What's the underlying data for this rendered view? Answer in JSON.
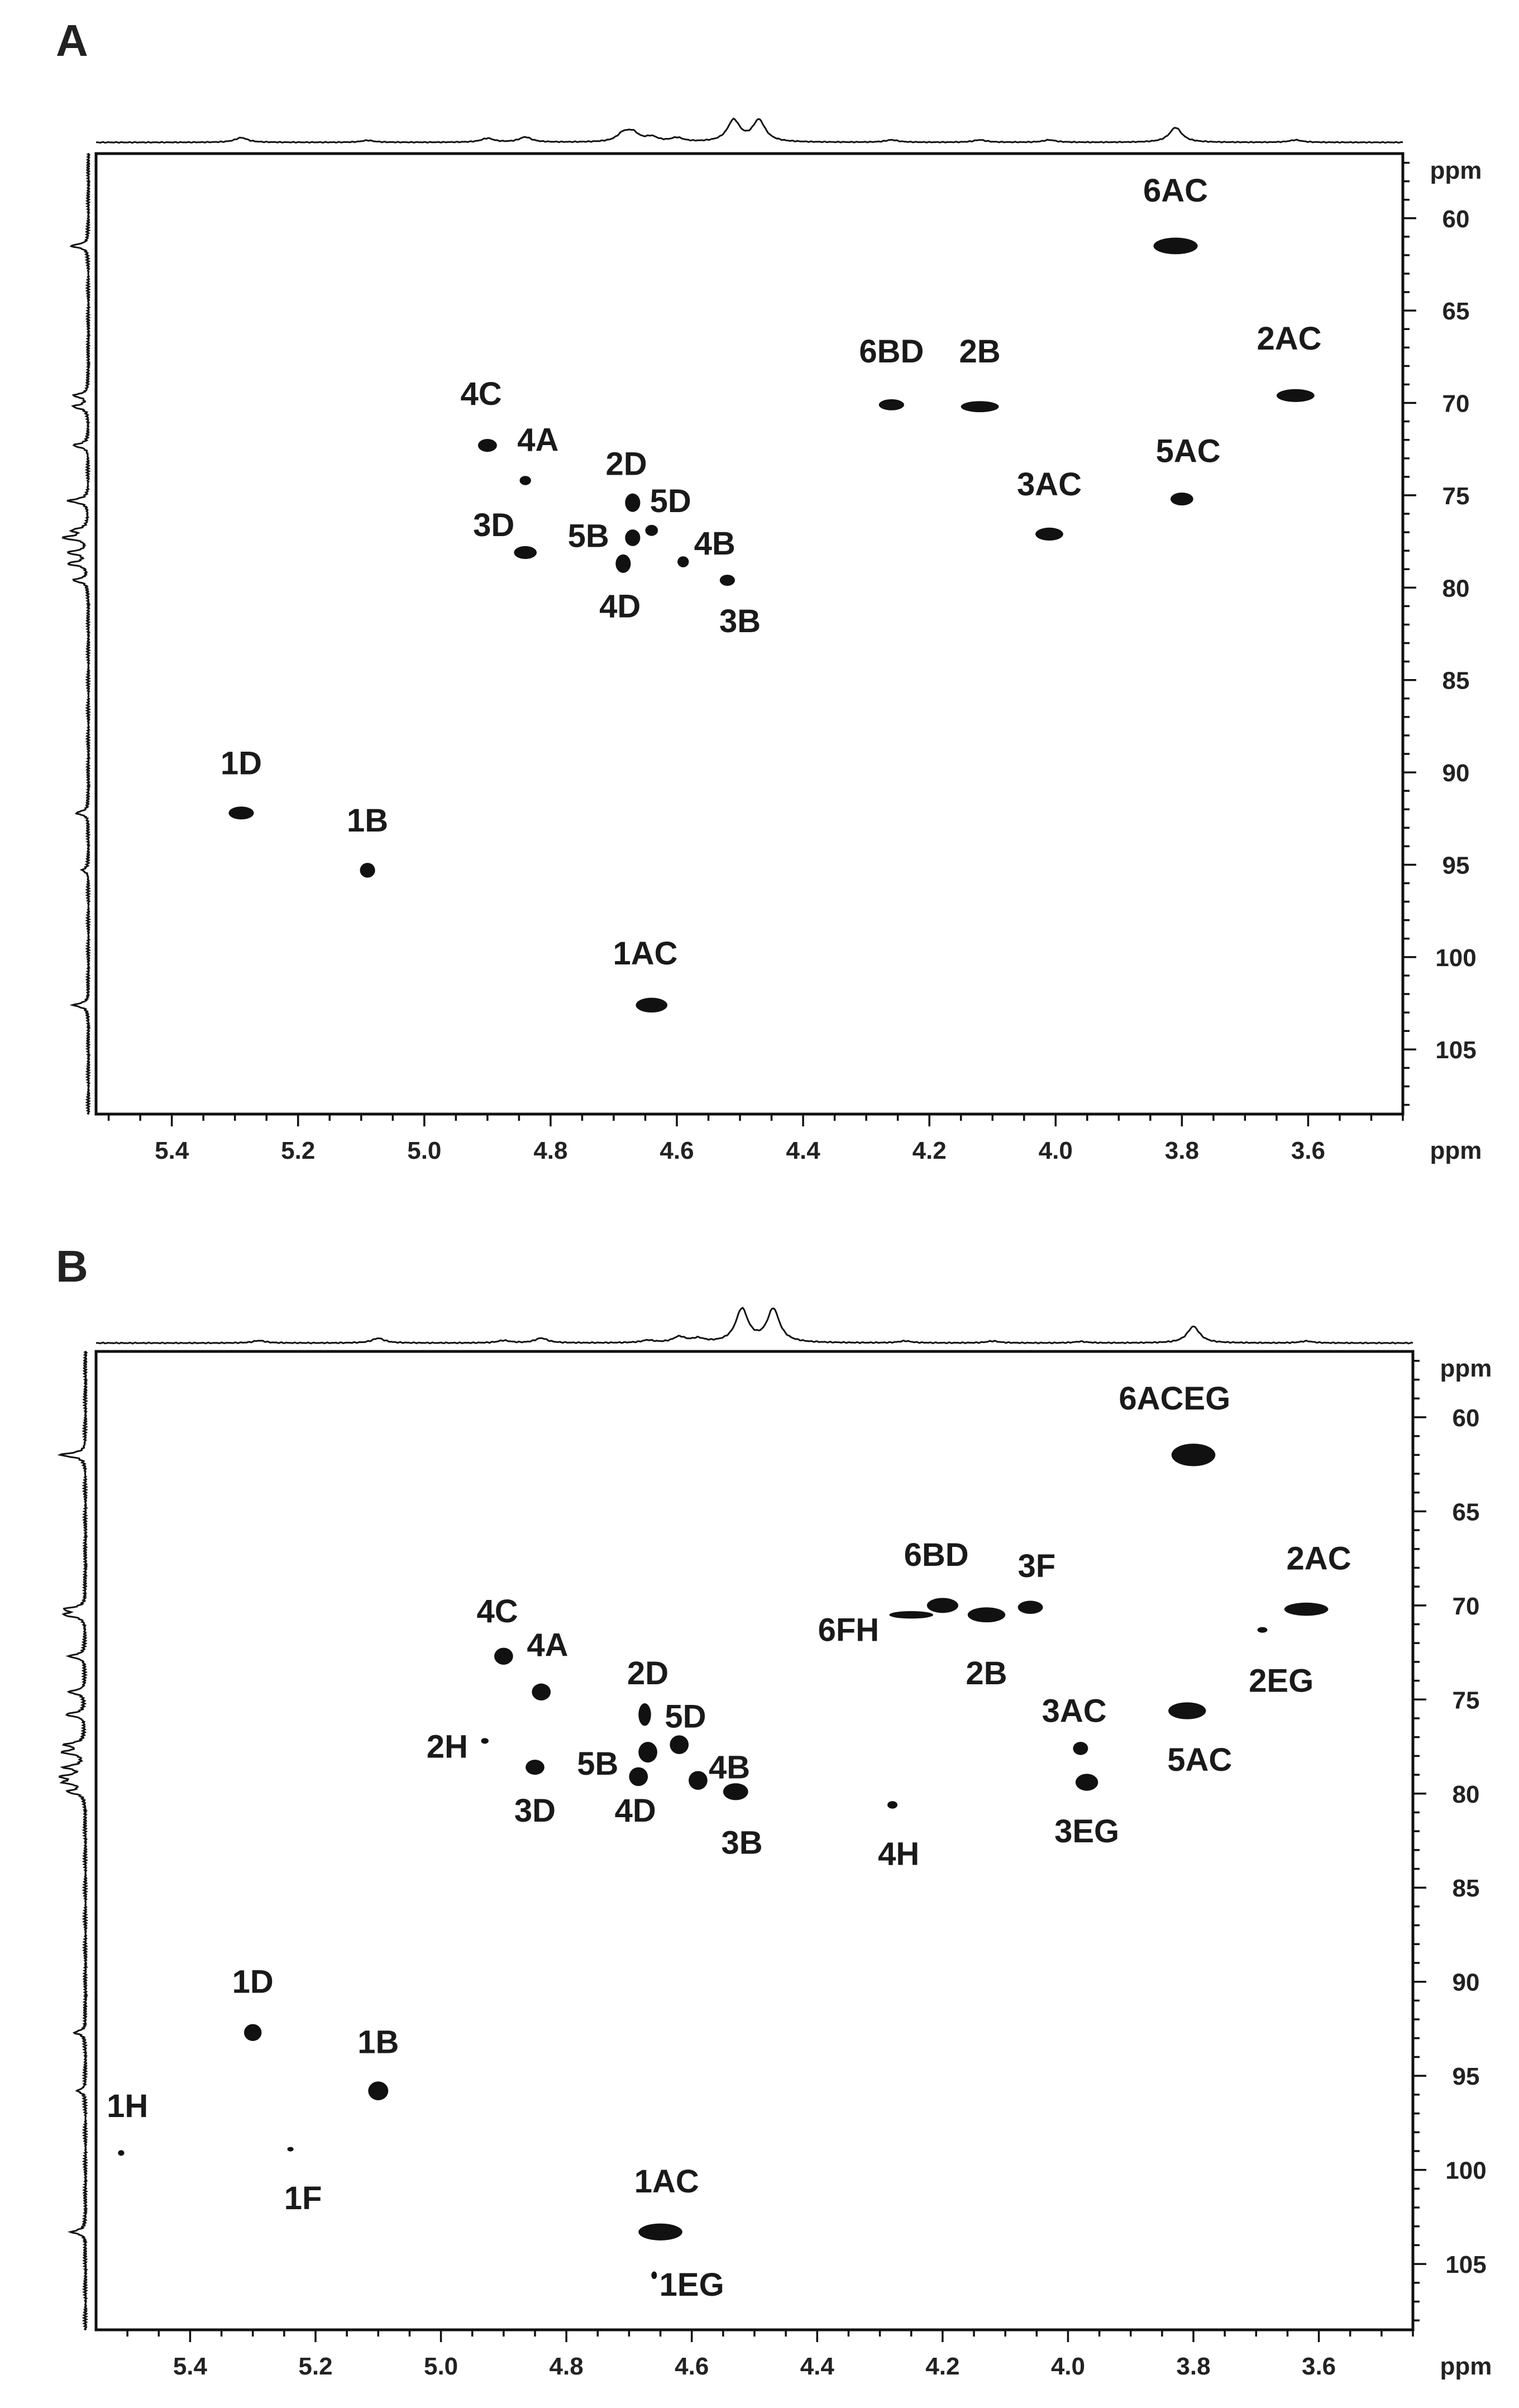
{
  "chart_data": [
    {
      "type": "scatter",
      "panel": "A",
      "xunit": "ppm",
      "yunit": "ppm",
      "xlim": [
        5.52,
        3.45
      ],
      "ylim": [
        56.5,
        108.5
      ],
      "xticks": [
        "5.4",
        "5.2",
        "5.0",
        "4.8",
        "4.6",
        "4.4",
        "4.2",
        "4.0",
        "3.8",
        "3.6"
      ],
      "yticks": [
        "60",
        "65",
        "70",
        "75",
        "80",
        "85",
        "90",
        "95",
        "100",
        "105"
      ],
      "peaks": [
        {
          "label": "6AC",
          "x": 3.81,
          "y": 61.5,
          "w": 0.035,
          "h": 0.45,
          "lx": 3.81,
          "ly": 58.5
        },
        {
          "label": "2AC",
          "x": 3.62,
          "y": 69.6,
          "w": 0.03,
          "h": 0.35,
          "lx": 3.63,
          "ly": 66.5
        },
        {
          "label": "6BD",
          "x": 4.26,
          "y": 70.1,
          "w": 0.02,
          "h": 0.3,
          "lx": 4.26,
          "ly": 67.2
        },
        {
          "label": "2B",
          "x": 4.12,
          "y": 70.2,
          "w": 0.03,
          "h": 0.3,
          "lx": 4.12,
          "ly": 67.2
        },
        {
          "label": "4C",
          "x": 4.9,
          "y": 72.3,
          "w": 0.015,
          "h": 0.35,
          "lx": 4.91,
          "ly": 69.5
        },
        {
          "label": "4A",
          "x": 4.84,
          "y": 74.2,
          "w": 0.009,
          "h": 0.25,
          "lx": 4.82,
          "ly": 72.0
        },
        {
          "label": "2D",
          "x": 4.67,
          "y": 75.4,
          "w": 0.012,
          "h": 0.5,
          "lx": 4.68,
          "ly": 73.3
        },
        {
          "label": "5D",
          "x": 4.64,
          "y": 76.9,
          "w": 0.01,
          "h": 0.3,
          "lx": 4.61,
          "ly": 75.3
        },
        {
          "label": "3D",
          "x": 4.84,
          "y": 78.1,
          "w": 0.018,
          "h": 0.35,
          "lx": 4.89,
          "ly": 76.6
        },
        {
          "label": "5B",
          "x": 4.67,
          "y": 77.3,
          "w": 0.012,
          "h": 0.45,
          "lx": 4.74,
          "ly": 77.2
        },
        {
          "label": "4D",
          "x": 4.685,
          "y": 78.7,
          "w": 0.012,
          "h": 0.5,
          "lx": 4.69,
          "ly": 81.0
        },
        {
          "label": "4B",
          "x": 4.59,
          "y": 78.6,
          "w": 0.009,
          "h": 0.3,
          "lx": 4.54,
          "ly": 77.6
        },
        {
          "label": "3B",
          "x": 4.52,
          "y": 79.6,
          "w": 0.012,
          "h": 0.3,
          "lx": 4.5,
          "ly": 81.8
        },
        {
          "label": "3AC",
          "x": 4.01,
          "y": 77.1,
          "w": 0.022,
          "h": 0.35,
          "lx": 4.01,
          "ly": 74.4
        },
        {
          "label": "5AC",
          "x": 3.8,
          "y": 75.2,
          "w": 0.018,
          "h": 0.35,
          "lx": 3.79,
          "ly": 72.6
        },
        {
          "label": "1D",
          "x": 5.29,
          "y": 92.2,
          "w": 0.02,
          "h": 0.35,
          "lx": 5.29,
          "ly": 89.5
        },
        {
          "label": "1B",
          "x": 5.09,
          "y": 95.3,
          "w": 0.012,
          "h": 0.4,
          "lx": 5.09,
          "ly": 92.6
        },
        {
          "label": "1AC",
          "x": 4.64,
          "y": 102.6,
          "w": 0.025,
          "h": 0.4,
          "lx": 4.65,
          "ly": 99.8
        }
      ],
      "projection_top": {
        "baseline": 0,
        "peaks": [
          [
            5.29,
            0.12
          ],
          [
            5.09,
            0.05
          ],
          [
            4.9,
            0.1
          ],
          [
            4.84,
            0.13
          ],
          [
            4.685,
            0.2
          ],
          [
            4.67,
            0.22
          ],
          [
            4.64,
            0.12
          ],
          [
            4.6,
            0.1
          ],
          [
            4.51,
            0.55
          ],
          [
            4.47,
            0.55
          ],
          [
            4.26,
            0.06
          ],
          [
            4.12,
            0.06
          ],
          [
            4.01,
            0.06
          ],
          [
            3.81,
            0.38
          ],
          [
            3.62,
            0.06
          ]
        ]
      },
      "projection_left": {
        "peaks": [
          [
            61.5,
            0.35
          ],
          [
            69.6,
            0.3
          ],
          [
            70.2,
            0.3
          ],
          [
            72.3,
            0.3
          ],
          [
            75.3,
            0.4
          ],
          [
            76.9,
            0.3
          ],
          [
            77.3,
            0.5
          ],
          [
            78.1,
            0.4
          ],
          [
            78.7,
            0.4
          ],
          [
            79.6,
            0.3
          ],
          [
            92.2,
            0.25
          ],
          [
            95.3,
            0.12
          ],
          [
            102.6,
            0.3
          ]
        ]
      }
    },
    {
      "type": "scatter",
      "panel": "B",
      "xunit": "ppm",
      "yunit": "ppm",
      "xlim": [
        5.55,
        3.45
      ],
      "ylim": [
        56.5,
        108.5
      ],
      "xticks": [
        "5.4",
        "5.2",
        "5.0",
        "4.8",
        "4.6",
        "4.4",
        "4.2",
        "4.0",
        "3.8",
        "3.6"
      ],
      "yticks": [
        "60",
        "65",
        "70",
        "75",
        "80",
        "85",
        "90",
        "95",
        "100",
        "105"
      ],
      "peaks": [
        {
          "label": "6ACEG",
          "x": 3.8,
          "y": 62.0,
          "w": 0.035,
          "h": 0.6,
          "lx": 3.83,
          "ly": 59.0
        },
        {
          "label": "2AC",
          "x": 3.62,
          "y": 70.2,
          "w": 0.035,
          "h": 0.35,
          "lx": 3.6,
          "ly": 67.5
        },
        {
          "label": "2EG",
          "x": 3.69,
          "y": 71.3,
          "w": 0.008,
          "h": 0.15,
          "lx": 3.66,
          "ly": 74.0
        },
        {
          "label": "6BD",
          "x": 4.2,
          "y": 70.0,
          "w": 0.025,
          "h": 0.4,
          "lx": 4.21,
          "ly": 67.3
        },
        {
          "label": "3F",
          "x": 4.06,
          "y": 70.1,
          "w": 0.02,
          "h": 0.35,
          "lx": 4.05,
          "ly": 67.9
        },
        {
          "label": "6FH",
          "x": 4.25,
          "y": 70.5,
          "w": 0.035,
          "h": 0.2,
          "lx": 4.35,
          "ly": 71.3
        },
        {
          "label": "2B",
          "x": 4.13,
          "y": 70.5,
          "w": 0.03,
          "h": 0.4,
          "lx": 4.13,
          "ly": 73.6
        },
        {
          "label": "4C",
          "x": 4.9,
          "y": 72.7,
          "w": 0.015,
          "h": 0.45,
          "lx": 4.91,
          "ly": 70.3
        },
        {
          "label": "4A",
          "x": 4.84,
          "y": 74.6,
          "w": 0.015,
          "h": 0.45,
          "lx": 4.83,
          "ly": 72.1
        },
        {
          "label": "2D",
          "x": 4.675,
          "y": 75.8,
          "w": 0.01,
          "h": 0.6,
          "lx": 4.67,
          "ly": 73.6
        },
        {
          "label": "5D",
          "x": 4.62,
          "y": 77.4,
          "w": 0.015,
          "h": 0.5,
          "lx": 4.61,
          "ly": 75.9
        },
        {
          "label": "2H",
          "x": 4.93,
          "y": 77.2,
          "w": 0.006,
          "h": 0.15,
          "lx": 4.99,
          "ly": 77.5
        },
        {
          "label": "5B",
          "x": 4.67,
          "y": 77.8,
          "w": 0.015,
          "h": 0.55,
          "lx": 4.75,
          "ly": 78.4
        },
        {
          "label": "3D",
          "x": 4.85,
          "y": 78.6,
          "w": 0.015,
          "h": 0.4,
          "lx": 4.85,
          "ly": 80.9
        },
        {
          "label": "4D",
          "x": 4.685,
          "y": 79.1,
          "w": 0.015,
          "h": 0.5,
          "lx": 4.69,
          "ly": 80.9
        },
        {
          "label": "4B",
          "x": 4.59,
          "y": 79.3,
          "w": 0.015,
          "h": 0.5,
          "lx": 4.54,
          "ly": 78.6
        },
        {
          "label": "3B",
          "x": 4.53,
          "y": 79.9,
          "w": 0.02,
          "h": 0.45,
          "lx": 4.52,
          "ly": 82.6
        },
        {
          "label": "4H",
          "x": 4.28,
          "y": 80.6,
          "w": 0.008,
          "h": 0.2,
          "lx": 4.27,
          "ly": 83.2
        },
        {
          "label": "3AC",
          "x": 3.98,
          "y": 77.6,
          "w": 0.012,
          "h": 0.35,
          "lx": 3.99,
          "ly": 75.6
        },
        {
          "label": "3EG",
          "x": 3.97,
          "y": 79.4,
          "w": 0.018,
          "h": 0.45,
          "lx": 3.97,
          "ly": 82.0
        },
        {
          "label": "5AC",
          "x": 3.81,
          "y": 75.6,
          "w": 0.03,
          "h": 0.45,
          "lx": 3.79,
          "ly": 78.2
        },
        {
          "label": "1D",
          "x": 5.3,
          "y": 92.7,
          "w": 0.014,
          "h": 0.45,
          "lx": 5.3,
          "ly": 90.0
        },
        {
          "label": "1B",
          "x": 5.1,
          "y": 95.8,
          "w": 0.016,
          "h": 0.5,
          "lx": 5.1,
          "ly": 93.2
        },
        {
          "label": "1H",
          "x": 5.51,
          "y": 99.1,
          "w": 0.005,
          "h": 0.15,
          "lx": 5.5,
          "ly": 96.6
        },
        {
          "label": "1F",
          "x": 5.24,
          "y": 98.9,
          "w": 0.005,
          "h": 0.12,
          "lx": 5.22,
          "ly": 101.5
        },
        {
          "label": "1AC",
          "x": 4.65,
          "y": 103.3,
          "w": 0.035,
          "h": 0.45,
          "lx": 4.64,
          "ly": 100.6
        },
        {
          "label": "1EG",
          "x": 4.66,
          "y": 105.6,
          "w": 0.003,
          "h": 0.2,
          "lx": 4.6,
          "ly": 106.1
        }
      ],
      "projection_top": {
        "baseline": 0,
        "peaks": [
          [
            5.29,
            0.05
          ],
          [
            5.1,
            0.1
          ],
          [
            4.9,
            0.05
          ],
          [
            4.84,
            0.1
          ],
          [
            4.67,
            0.05
          ],
          [
            4.62,
            0.12
          ],
          [
            4.59,
            0.08
          ],
          [
            4.52,
            0.7
          ],
          [
            4.47,
            0.7
          ],
          [
            4.26,
            0.04
          ],
          [
            4.12,
            0.04
          ],
          [
            3.98,
            0.03
          ],
          [
            3.8,
            0.35
          ],
          [
            3.62,
            0.04
          ]
        ]
      },
      "projection_left": {
        "peaks": [
          [
            62.0,
            0.45
          ],
          [
            70.2,
            0.35
          ],
          [
            70.5,
            0.35
          ],
          [
            72.7,
            0.3
          ],
          [
            74.6,
            0.3
          ],
          [
            75.8,
            0.35
          ],
          [
            77.4,
            0.35
          ],
          [
            77.8,
            0.4
          ],
          [
            78.6,
            0.35
          ],
          [
            79.1,
            0.4
          ],
          [
            79.4,
            0.35
          ],
          [
            79.9,
            0.3
          ],
          [
            92.7,
            0.2
          ],
          [
            95.8,
            0.15
          ],
          [
            103.3,
            0.25
          ]
        ]
      }
    }
  ]
}
